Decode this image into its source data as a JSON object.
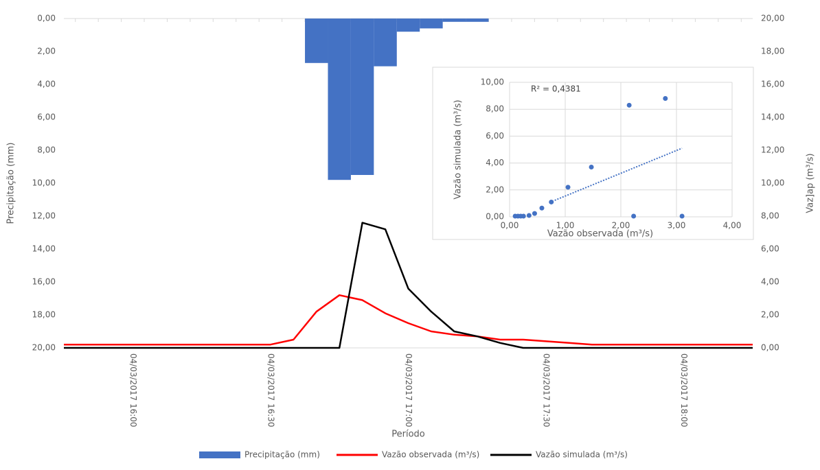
{
  "chart_data": [
    {
      "type": "combo",
      "xlabel": "Período",
      "ylabel": "Precipitação (mm)",
      "y2label": "Vaz]ap (m³/s)",
      "categories": [
        null,
        null,
        null,
        "04/03/2017 16:00",
        null,
        null,
        null,
        null,
        null,
        "04/03/2017 16:30",
        null,
        null,
        null,
        null,
        null,
        "04/03/2017 17:00",
        null,
        null,
        null,
        null,
        null,
        "04/03/2017 17:30",
        null,
        null,
        null,
        null,
        null,
        "04/03/2017 18:00",
        null,
        null,
        null
      ],
      "series": [
        {
          "name": "Precipitação (mm)",
          "type": "bar",
          "color": "#4472c4",
          "values": [
            0,
            0,
            0,
            0,
            0,
            0,
            0,
            0,
            0,
            0,
            0,
            2.7,
            9.8,
            9.5,
            2.9,
            0.8,
            0.6,
            0.2,
            0.2,
            0,
            0,
            0,
            0,
            0,
            0,
            0,
            0,
            0,
            0,
            0,
            0
          ]
        },
        {
          "name": "Vazão observada (m³/s)",
          "type": "line",
          "axis": "y2",
          "color": "#ff0000",
          "values": [
            0.2,
            0.2,
            0.2,
            0.2,
            0.2,
            0.2,
            0.2,
            0.2,
            0.2,
            0.2,
            0.5,
            2.2,
            3.2,
            2.9,
            2.1,
            1.5,
            1.0,
            0.8,
            0.7,
            0.5,
            0.5,
            0.4,
            0.3,
            0.2,
            0.2,
            0.2,
            0.2,
            0.2,
            0.2,
            0.2,
            0.2
          ]
        },
        {
          "name": "Vazão simulada (m³/s)",
          "type": "line",
          "axis": "y2",
          "color": "#000000",
          "values": [
            0,
            0,
            0,
            0,
            0,
            0,
            0,
            0,
            0,
            0,
            0,
            0,
            0,
            7.6,
            7.2,
            3.6,
            2.2,
            1.0,
            0.7,
            0.3,
            0,
            0,
            0,
            0,
            0,
            0,
            0,
            0,
            0,
            0,
            0
          ]
        }
      ],
      "ylim": [
        0,
        20
      ],
      "y_inverted": true,
      "yticks": [
        {
          "value": 0,
          "label": "0,00"
        },
        {
          "value": 2,
          "label": "2,00"
        },
        {
          "value": 4,
          "label": "4,00"
        },
        {
          "value": 6,
          "label": "6,00"
        },
        {
          "value": 8,
          "label": "8,00"
        },
        {
          "value": 10,
          "label": "10,00"
        },
        {
          "value": 12,
          "label": "12,00"
        },
        {
          "value": 14,
          "label": "14,00"
        },
        {
          "value": 16,
          "label": "16,00"
        },
        {
          "value": 18,
          "label": "18,00"
        },
        {
          "value": 20,
          "label": "20,00"
        }
      ],
      "y2lim": [
        0,
        20
      ],
      "y2ticks": [
        {
          "value": 0,
          "label": "0,00"
        },
        {
          "value": 2,
          "label": "2,00"
        },
        {
          "value": 4,
          "label": "4,00"
        },
        {
          "value": 6,
          "label": "6,00"
        },
        {
          "value": 8,
          "label": "8,00"
        },
        {
          "value": 10,
          "label": "10,00"
        },
        {
          "value": 12,
          "label": "12,00"
        },
        {
          "value": 14,
          "label": "14,00"
        },
        {
          "value": 16,
          "label": "16,00"
        },
        {
          "value": 18,
          "label": "18,00"
        },
        {
          "value": 20,
          "label": "20,00"
        }
      ],
      "grid": false,
      "legend": "bottom"
    },
    {
      "type": "scatter",
      "xlabel": "Vazão observada (m³/s)",
      "ylabel": "Vazão simulada (m³/s)",
      "annotation": "R² = 0,4381",
      "color": "#4472c4",
      "x": [
        0.1,
        0.15,
        0.2,
        0.25,
        0.35,
        0.45,
        0.58,
        0.75,
        1.05,
        1.47,
        2.15,
        2.23,
        2.8,
        3.1
      ],
      "values": [
        0.05,
        0.05,
        0.05,
        0.05,
        0.1,
        0.25,
        0.65,
        1.1,
        2.2,
        3.7,
        8.3,
        0.05,
        8.8,
        0.05
      ],
      "trendline": {
        "x": [
          0.72,
          3.1
        ],
        "y": [
          1.07,
          5.1
        ]
      },
      "xlim": [
        0,
        4
      ],
      "ylim": [
        0,
        10
      ],
      "xticks": [
        {
          "value": 0,
          "label": "0,00"
        },
        {
          "value": 1,
          "label": "1,00"
        },
        {
          "value": 2,
          "label": "2,00"
        },
        {
          "value": 3,
          "label": "3,00"
        },
        {
          "value": 4,
          "label": "4,00"
        }
      ],
      "yticks": [
        {
          "value": 0,
          "label": "0,00"
        },
        {
          "value": 2,
          "label": "2,00"
        },
        {
          "value": 4,
          "label": "4,00"
        },
        {
          "value": 6,
          "label": "6,00"
        },
        {
          "value": 8,
          "label": "8,00"
        },
        {
          "value": 10,
          "label": "10,00"
        }
      ],
      "grid": true
    }
  ]
}
